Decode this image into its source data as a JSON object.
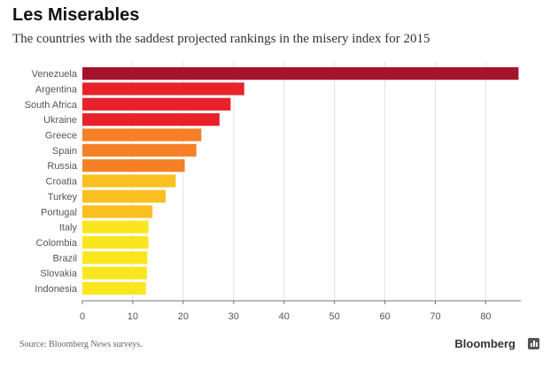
{
  "header": {
    "title": "Les Miserables",
    "subtitle": "The countries with the saddest projected rankings in the misery index for 2015"
  },
  "footer": {
    "source": "Source: Bloomberg News surveys.",
    "brand": "Bloomberg"
  },
  "chart_data": {
    "type": "bar",
    "orientation": "horizontal",
    "categories": [
      "Venezuela",
      "Argentina",
      "South Africa",
      "Ukraine",
      "Greece",
      "Spain",
      "Russia",
      "Croatia",
      "Turkey",
      "Portugal",
      "Italy",
      "Colombia",
      "Brazil",
      "Slovakia",
      "Indonesia"
    ],
    "values": [
      86.5,
      32.1,
      29.4,
      27.2,
      23.6,
      22.6,
      20.3,
      18.5,
      16.5,
      13.9,
      13.1,
      13.1,
      12.9,
      12.8,
      12.6
    ],
    "colors": [
      "#a5142b",
      "#e8212b",
      "#e8212b",
      "#e8212b",
      "#f58025",
      "#f58025",
      "#f58025",
      "#fbbf1f",
      "#fbbf1f",
      "#fbbf1f",
      "#f9e61e",
      "#f9e61e",
      "#f9e61e",
      "#f9e61e",
      "#f9e61e"
    ],
    "xticks": [
      0,
      10,
      20,
      30,
      40,
      50,
      60,
      70,
      80
    ],
    "xlim": [
      0,
      87
    ],
    "grid": true,
    "title": "",
    "xlabel": "",
    "ylabel": ""
  }
}
